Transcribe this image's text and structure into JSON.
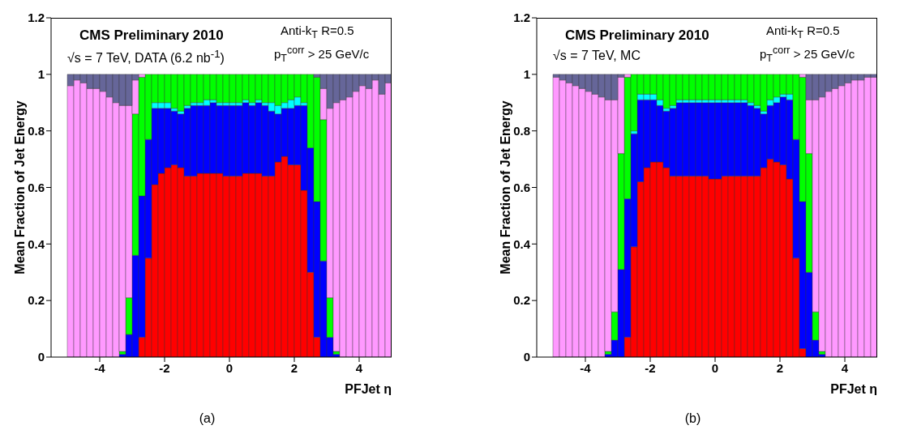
{
  "chart_data": [
    {
      "type": "bar",
      "stacked": true,
      "title": "CMS Preliminary 2010",
      "xlabel": "PFJet η",
      "ylabel": "Mean Fraction of Jet Energy",
      "annotations": [
        "√s = 7 TeV, DATA (6.2 nb$^{-1}$)",
        "Anti-k$_{T}$ R=0.5",
        "p$_{T}$$^{corr}$ > 25 GeV/c",
        "(a)"
      ],
      "x": [
        -4.9,
        -4.7,
        -4.5,
        -4.3,
        -4.1,
        -3.9,
        -3.7,
        -3.5,
        -3.3,
        -3.1,
        -2.9,
        -2.7,
        -2.5,
        -2.3,
        -2.1,
        -1.9,
        -1.7,
        -1.5,
        -1.3,
        -1.1,
        -0.9,
        -0.7,
        -0.5,
        -0.3,
        -0.1,
        0.1,
        0.3,
        0.5,
        0.7,
        0.9,
        1.1,
        1.3,
        1.5,
        1.7,
        1.9,
        2.1,
        2.3,
        2.5,
        2.7,
        2.9,
        3.1,
        3.3,
        3.5,
        3.7,
        3.9,
        4.1,
        4.3,
        4.5,
        4.7,
        4.9
      ],
      "xlim": [
        -5.5,
        5
      ],
      "xticks": [
        -4,
        -2,
        0,
        2,
        4
      ],
      "ylim": [
        0,
        1.2
      ],
      "yticks": [
        0,
        0.2,
        0.4,
        0.6,
        0.8,
        1,
        1.2
      ],
      "series": [
        {
          "color": "#ff0000",
          "values": [
            0,
            0,
            0,
            0,
            0,
            0,
            0,
            0,
            0,
            0,
            0,
            0.07,
            0.35,
            0.61,
            0.65,
            0.67,
            0.68,
            0.67,
            0.64,
            0.64,
            0.65,
            0.65,
            0.65,
            0.65,
            0.64,
            0.64,
            0.64,
            0.65,
            0.65,
            0.65,
            0.64,
            0.64,
            0.69,
            0.71,
            0.68,
            0.68,
            0.59,
            0.3,
            0.07,
            0,
            0,
            0,
            0,
            0,
            0,
            0,
            0,
            0,
            0,
            0
          ]
        },
        {
          "color": "#0000ff",
          "values": [
            0,
            0,
            0,
            0,
            0,
            0,
            0,
            0,
            0.01,
            0.08,
            0.36,
            0.5,
            0.42,
            0.27,
            0.23,
            0.21,
            0.19,
            0.19,
            0.24,
            0.25,
            0.24,
            0.24,
            0.25,
            0.24,
            0.25,
            0.25,
            0.25,
            0.25,
            0.24,
            0.25,
            0.25,
            0.23,
            0.17,
            0.17,
            0.2,
            0.21,
            0.3,
            0.44,
            0.48,
            0.34,
            0.07,
            0.01,
            0,
            0,
            0,
            0,
            0,
            0,
            0,
            0
          ]
        },
        {
          "color": "#00ffff",
          "values": [
            0,
            0,
            0,
            0,
            0,
            0,
            0,
            0,
            0,
            0,
            0,
            0,
            0,
            0.02,
            0.02,
            0.02,
            0.01,
            0.01,
            0.01,
            0.01,
            0.01,
            0.02,
            0.01,
            0.01,
            0.01,
            0.01,
            0.01,
            0.01,
            0.01,
            0.01,
            0.01,
            0.03,
            0.03,
            0.02,
            0.03,
            0.03,
            0.01,
            0,
            0,
            0,
            0,
            0,
            0,
            0,
            0,
            0,
            0,
            0,
            0,
            0
          ]
        },
        {
          "color": "#00ff00",
          "values": [
            0,
            0,
            0,
            0,
            0,
            0,
            0,
            0,
            0.01,
            0.13,
            0.5,
            0.42,
            0.23,
            0.1,
            0.1,
            0.1,
            0.12,
            0.13,
            0.11,
            0.1,
            0.1,
            0.09,
            0.09,
            0.1,
            0.1,
            0.1,
            0.1,
            0.09,
            0.1,
            0.09,
            0.1,
            0.1,
            0.11,
            0.1,
            0.09,
            0.08,
            0.1,
            0.26,
            0.44,
            0.5,
            0.14,
            0.01,
            0,
            0,
            0,
            0,
            0,
            0,
            0,
            0
          ]
        },
        {
          "color": "#ff99ff",
          "values": [
            0.96,
            0.98,
            0.97,
            0.95,
            0.95,
            0.94,
            0.92,
            0.9,
            0.87,
            0.68,
            0.12,
            0.01,
            0,
            0,
            0,
            0,
            0,
            0,
            0,
            0,
            0,
            0,
            0,
            0,
            0,
            0,
            0,
            0,
            0,
            0,
            0,
            0,
            0,
            0,
            0,
            0,
            0,
            0,
            0,
            0.11,
            0.67,
            0.88,
            0.91,
            0.92,
            0.94,
            0.96,
            0.95,
            0.98,
            0.93,
            0.97
          ]
        },
        {
          "color": "#666699",
          "values": [
            0.04,
            0.02,
            0.03,
            0.05,
            0.05,
            0.06,
            0.08,
            0.1,
            0.11,
            0.11,
            0.02,
            0,
            0,
            0,
            0,
            0,
            0,
            0,
            0,
            0,
            0,
            0,
            0,
            0,
            0,
            0,
            0,
            0,
            0,
            0,
            0,
            0,
            0,
            0,
            0,
            0,
            0,
            0,
            0.01,
            0.05,
            0.12,
            0.1,
            0.09,
            0.08,
            0.06,
            0.04,
            0.05,
            0.02,
            0.07,
            0.03
          ]
        }
      ]
    },
    {
      "type": "bar",
      "stacked": true,
      "title": "CMS Preliminary 2010",
      "xlabel": "PFJet η",
      "ylabel": "Mean Fraction of Jet Energy",
      "annotations": [
        "√s = 7 TeV, MC",
        "Anti-k$_{T}$ R=0.5",
        "p$_{T}$$^{corr}$ > 25 GeV/c",
        "(b)"
      ],
      "x": [
        -4.9,
        -4.7,
        -4.5,
        -4.3,
        -4.1,
        -3.9,
        -3.7,
        -3.5,
        -3.3,
        -3.1,
        -2.9,
        -2.7,
        -2.5,
        -2.3,
        -2.1,
        -1.9,
        -1.7,
        -1.5,
        -1.3,
        -1.1,
        -0.9,
        -0.7,
        -0.5,
        -0.3,
        -0.1,
        0.1,
        0.3,
        0.5,
        0.7,
        0.9,
        1.1,
        1.3,
        1.5,
        1.7,
        1.9,
        2.1,
        2.3,
        2.5,
        2.7,
        2.9,
        3.1,
        3.3,
        3.5,
        3.7,
        3.9,
        4.1,
        4.3,
        4.5,
        4.7,
        4.9
      ],
      "xlim": [
        -5.5,
        5
      ],
      "xticks": [
        -4,
        -2,
        0,
        2,
        4
      ],
      "ylim": [
        0,
        1.2
      ],
      "yticks": [
        0,
        0.2,
        0.4,
        0.6,
        0.8,
        1,
        1.2
      ],
      "series": [
        {
          "color": "#ff0000",
          "values": [
            0,
            0,
            0,
            0,
            0,
            0,
            0,
            0,
            0,
            0,
            0,
            0.07,
            0.39,
            0.62,
            0.67,
            0.69,
            0.69,
            0.67,
            0.64,
            0.64,
            0.64,
            0.64,
            0.64,
            0.64,
            0.63,
            0.63,
            0.64,
            0.64,
            0.64,
            0.64,
            0.64,
            0.64,
            0.67,
            0.7,
            0.69,
            0.68,
            0.63,
            0.35,
            0.03,
            0,
            0,
            0,
            0,
            0,
            0,
            0,
            0,
            0,
            0,
            0
          ]
        },
        {
          "color": "#0000ff",
          "values": [
            0,
            0,
            0,
            0,
            0,
            0,
            0,
            0,
            0.01,
            0.06,
            0.31,
            0.49,
            0.4,
            0.29,
            0.24,
            0.22,
            0.2,
            0.2,
            0.24,
            0.26,
            0.26,
            0.26,
            0.26,
            0.26,
            0.27,
            0.27,
            0.26,
            0.26,
            0.26,
            0.26,
            0.25,
            0.24,
            0.19,
            0.19,
            0.21,
            0.24,
            0.28,
            0.42,
            0.52,
            0.3,
            0.06,
            0.01,
            0,
            0,
            0,
            0,
            0,
            0,
            0,
            0
          ]
        },
        {
          "color": "#00ffff",
          "values": [
            0,
            0,
            0,
            0,
            0,
            0,
            0,
            0,
            0,
            0,
            0,
            0,
            0.01,
            0.02,
            0.02,
            0.02,
            0.02,
            0.01,
            0.01,
            0.01,
            0.01,
            0.01,
            0.01,
            0.01,
            0.01,
            0.01,
            0.01,
            0.01,
            0.01,
            0.01,
            0.01,
            0.01,
            0.01,
            0.02,
            0.02,
            0.01,
            0.02,
            0,
            0,
            0,
            0,
            0,
            0,
            0,
            0,
            0,
            0,
            0,
            0,
            0
          ]
        },
        {
          "color": "#00ff00",
          "values": [
            0,
            0,
            0,
            0,
            0,
            0,
            0,
            0,
            0.01,
            0.1,
            0.41,
            0.43,
            0.2,
            0.07,
            0.07,
            0.07,
            0.09,
            0.12,
            0.11,
            0.09,
            0.09,
            0.09,
            0.09,
            0.09,
            0.09,
            0.09,
            0.09,
            0.09,
            0.09,
            0.09,
            0.1,
            0.11,
            0.13,
            0.09,
            0.08,
            0.07,
            0.07,
            0.23,
            0.44,
            0.42,
            0.1,
            0.01,
            0,
            0,
            0,
            0,
            0,
            0,
            0,
            0
          ]
        },
        {
          "color": "#ff99ff",
          "values": [
            0.99,
            0.98,
            0.97,
            0.96,
            0.95,
            0.94,
            0.93,
            0.92,
            0.89,
            0.75,
            0.27,
            0.01,
            0,
            0,
            0,
            0,
            0,
            0,
            0,
            0,
            0,
            0,
            0,
            0,
            0,
            0,
            0,
            0,
            0,
            0,
            0,
            0,
            0,
            0,
            0,
            0,
            0,
            0,
            0.01,
            0.19,
            0.75,
            0.9,
            0.94,
            0.95,
            0.96,
            0.97,
            0.98,
            0.98,
            0.99,
            0.99
          ]
        },
        {
          "color": "#666699",
          "values": [
            0.01,
            0.02,
            0.03,
            0.04,
            0.05,
            0.06,
            0.07,
            0.08,
            0.09,
            0.09,
            0.01,
            0,
            0,
            0,
            0,
            0,
            0,
            0,
            0,
            0,
            0,
            0,
            0,
            0,
            0,
            0,
            0,
            0,
            0,
            0,
            0,
            0,
            0,
            0,
            0,
            0,
            0,
            0,
            0,
            0.09,
            0.09,
            0.08,
            0.06,
            0.05,
            0.04,
            0.03,
            0.02,
            0.02,
            0.01,
            0.01
          ]
        }
      ]
    }
  ]
}
